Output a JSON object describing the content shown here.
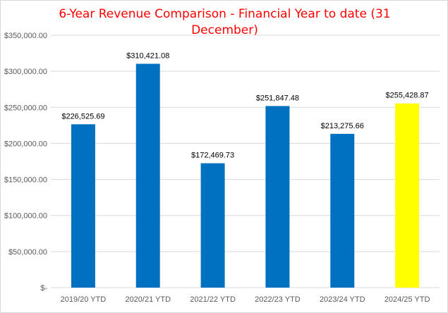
{
  "chart_data": {
    "type": "bar",
    "title_lines": [
      "6-Year Revenue Comparison - Financial Year to date (31",
      "December)"
    ],
    "categories": [
      "2019/20 YTD",
      "2020/21 YTD",
      "2021/22 YTD",
      "2022/23 YTD",
      "2023/24 YTD",
      "2024/25 YTD"
    ],
    "values": [
      226525.69,
      310421.08,
      172469.73,
      251847.48,
      213275.66,
      255428.87
    ],
    "value_labels": [
      "$226,525.69",
      "$310,421.08",
      "$172,469.73",
      "$251,847.48",
      "$213,275.66",
      "$255,428.87"
    ],
    "bar_colors": [
      "#0070c0",
      "#0070c0",
      "#0070c0",
      "#0070c0",
      "#0070c0",
      "#ffff00"
    ],
    "y_ticks": [
      0,
      50000,
      100000,
      150000,
      200000,
      250000,
      300000,
      350000
    ],
    "y_tick_labels": [
      "$-",
      "$50,000.00",
      "$100,000.00",
      "$150,000.00",
      "$200,000.00",
      "$250,000.00",
      "$300,000.00",
      "$350,000.00"
    ],
    "ylim": [
      0,
      350000
    ],
    "grid": true,
    "title_color": "#ff0000"
  }
}
